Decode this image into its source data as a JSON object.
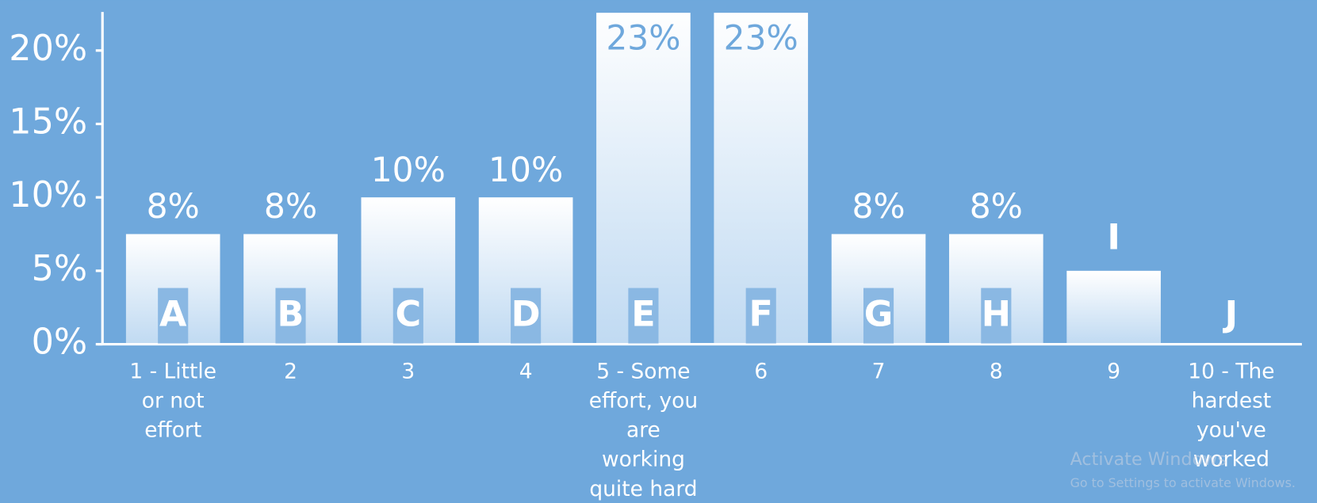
{
  "chart_data": {
    "type": "bar",
    "categories": [
      "1 - Little or not effort",
      "2",
      "3",
      "4",
      "5 - Some effort, you are working quite hard",
      "6",
      "7",
      "8",
      "9",
      "10 - The hardest you've worked"
    ],
    "letters": [
      "A",
      "B",
      "C",
      "D",
      "E",
      "F",
      "G",
      "H",
      "I",
      "J"
    ],
    "values": [
      7.5,
      7.5,
      10,
      10,
      23,
      23,
      7.5,
      7.5,
      5,
      0
    ],
    "value_labels": [
      "8%",
      "8%",
      "10%",
      "10%",
      "23%",
      "23%",
      "8%",
      "8%",
      null,
      null
    ],
    "color": "#ffffff",
    "ylim": [
      0,
      22.57
    ],
    "yticks": [
      {
        "value": 0,
        "label": "0%"
      },
      {
        "value": 5,
        "label": "5%"
      },
      {
        "value": 10,
        "label": "10%"
      },
      {
        "value": 15,
        "label": "15%"
      },
      {
        "value": 20,
        "label": "20%"
      }
    ],
    "watermark": [
      "Activate Windows",
      "Go to Settings to activate Windows."
    ]
  }
}
